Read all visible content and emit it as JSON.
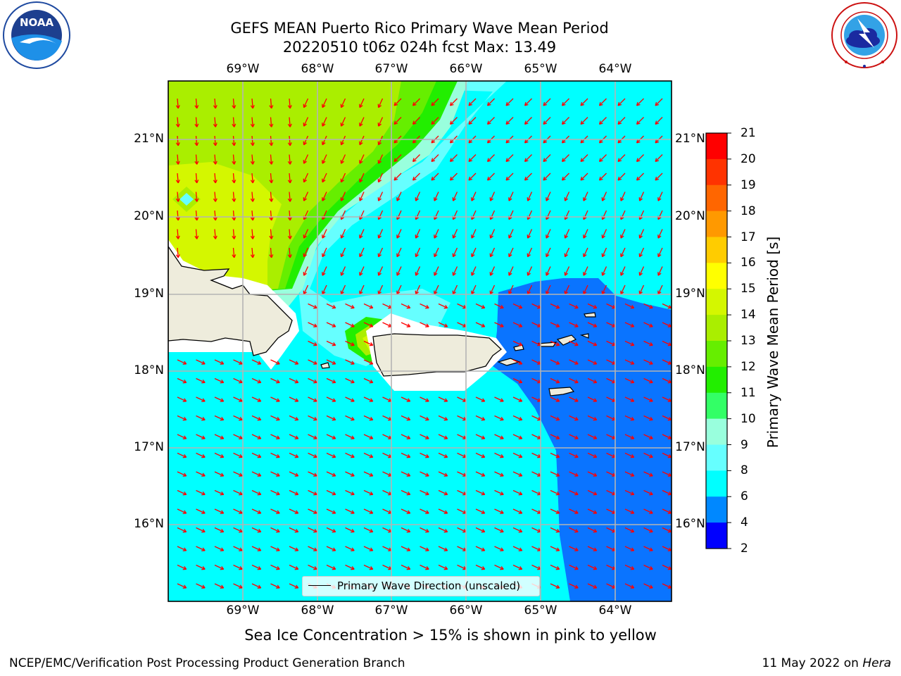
{
  "title": {
    "line1": "GEFS MEAN Puerto Rico Primary Wave Mean Period",
    "line2": "20220510 t06z 024h fcst   Max: 13.49"
  },
  "map": {
    "lon_labels": [
      "69°W",
      "68°W",
      "67°W",
      "66°W",
      "65°W",
      "64°W"
    ],
    "lat_labels": [
      "21°N",
      "20°N",
      "19°N",
      "18°N",
      "17°N",
      "16°N"
    ],
    "legend_label": "Primary Wave Direction (unscaled)",
    "arrow_color": "#ff0000",
    "land_color": "#eeecdc"
  },
  "colorbar": {
    "label": "Primary Wave Mean Period [s]",
    "ticks": [
      "21",
      "20",
      "19",
      "18",
      "17",
      "16",
      "15",
      "14",
      "13",
      "12",
      "11",
      "10",
      "9",
      "8",
      "6",
      "4",
      "2"
    ],
    "colors": [
      "#ff0000",
      "#ff3300",
      "#ff6600",
      "#ff9900",
      "#ffcc00",
      "#ffff00",
      "#d4f700",
      "#aaee00",
      "#66ee00",
      "#22ee00",
      "#33ff66",
      "#99ffdd",
      "#66ffff",
      "#00ffff",
      "#0088ff",
      "#0000ff"
    ]
  },
  "notes": {
    "sea_ice": "Sea Ice Concentration > 15% is shown in pink to yellow",
    "footer_left": "NCEP/EMC/Verification Post Processing Product Generation Branch",
    "footer_date": "11 May 2022 on ",
    "footer_host": "Hera"
  },
  "logos": {
    "noaa_text": "NOAA",
    "noaa_ring": "NATIONAL OCEANIC AND ATMOSPHERIC ADMINISTRATION · U.S. DEPARTMENT OF COMMERCE",
    "nws_ring": "NATIONAL WEATHER SERVICE"
  }
}
